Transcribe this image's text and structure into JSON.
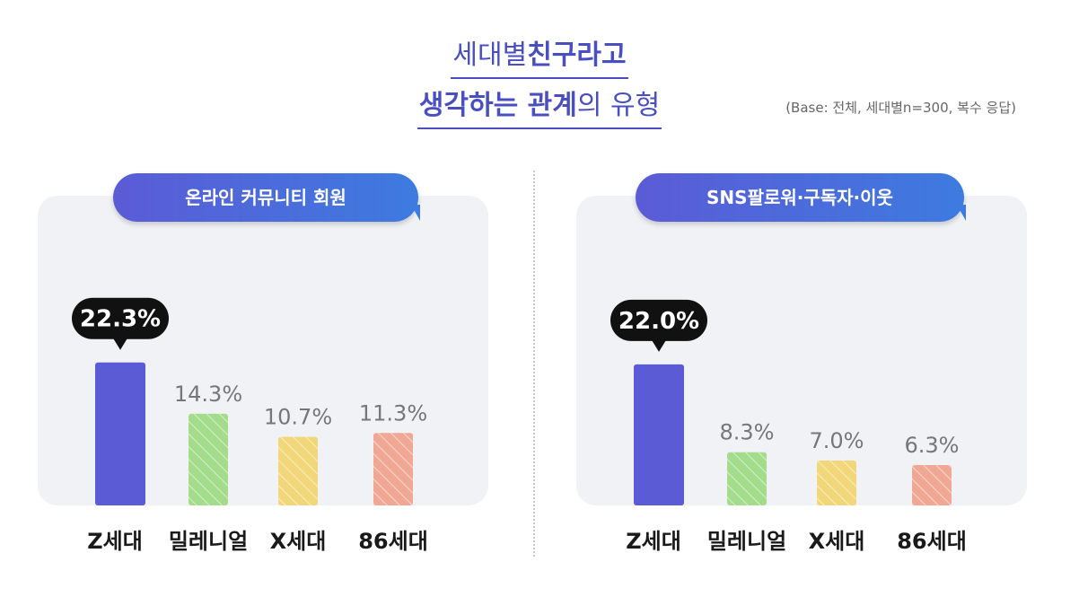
{
  "title": {
    "line1_normal": "세대별 ",
    "line1_bold": "친구라고",
    "line2_bold1": "생각하는 관계",
    "line2_normal": "의 유형"
  },
  "base_note": "(Base: 전체, 세대별n=300, 복수 응답)",
  "colors": {
    "z": "#5b5bd6",
    "millennial": "#a3dc8b",
    "x": "#f2d77a",
    "eighty_six": "#f0a895",
    "highlight_bubble": "#111111"
  },
  "chart_data": [
    {
      "type": "bar",
      "title": "온라인 커뮤니티 회원",
      "categories": [
        "Z세대",
        "밀레니얼",
        "X세대",
        "86세대"
      ],
      "values": [
        22.3,
        14.3,
        10.7,
        11.3
      ],
      "value_labels": [
        "22.3%",
        "14.3%",
        "10.7%",
        "11.3%"
      ],
      "highlight_index": 0,
      "ylim": [
        0,
        30
      ],
      "xlabel": "",
      "ylabel": "",
      "grid": false
    },
    {
      "type": "bar",
      "title": "SNS팔로워·구독자·이웃",
      "categories": [
        "Z세대",
        "밀레니얼",
        "X세대",
        "86세대"
      ],
      "values": [
        22.0,
        8.3,
        7.0,
        6.3
      ],
      "value_labels": [
        "22.0%",
        "8.3%",
        "7.0%",
        "6.3%"
      ],
      "highlight_index": 0,
      "ylim": [
        0,
        30
      ],
      "xlabel": "",
      "ylabel": "",
      "grid": false
    }
  ]
}
